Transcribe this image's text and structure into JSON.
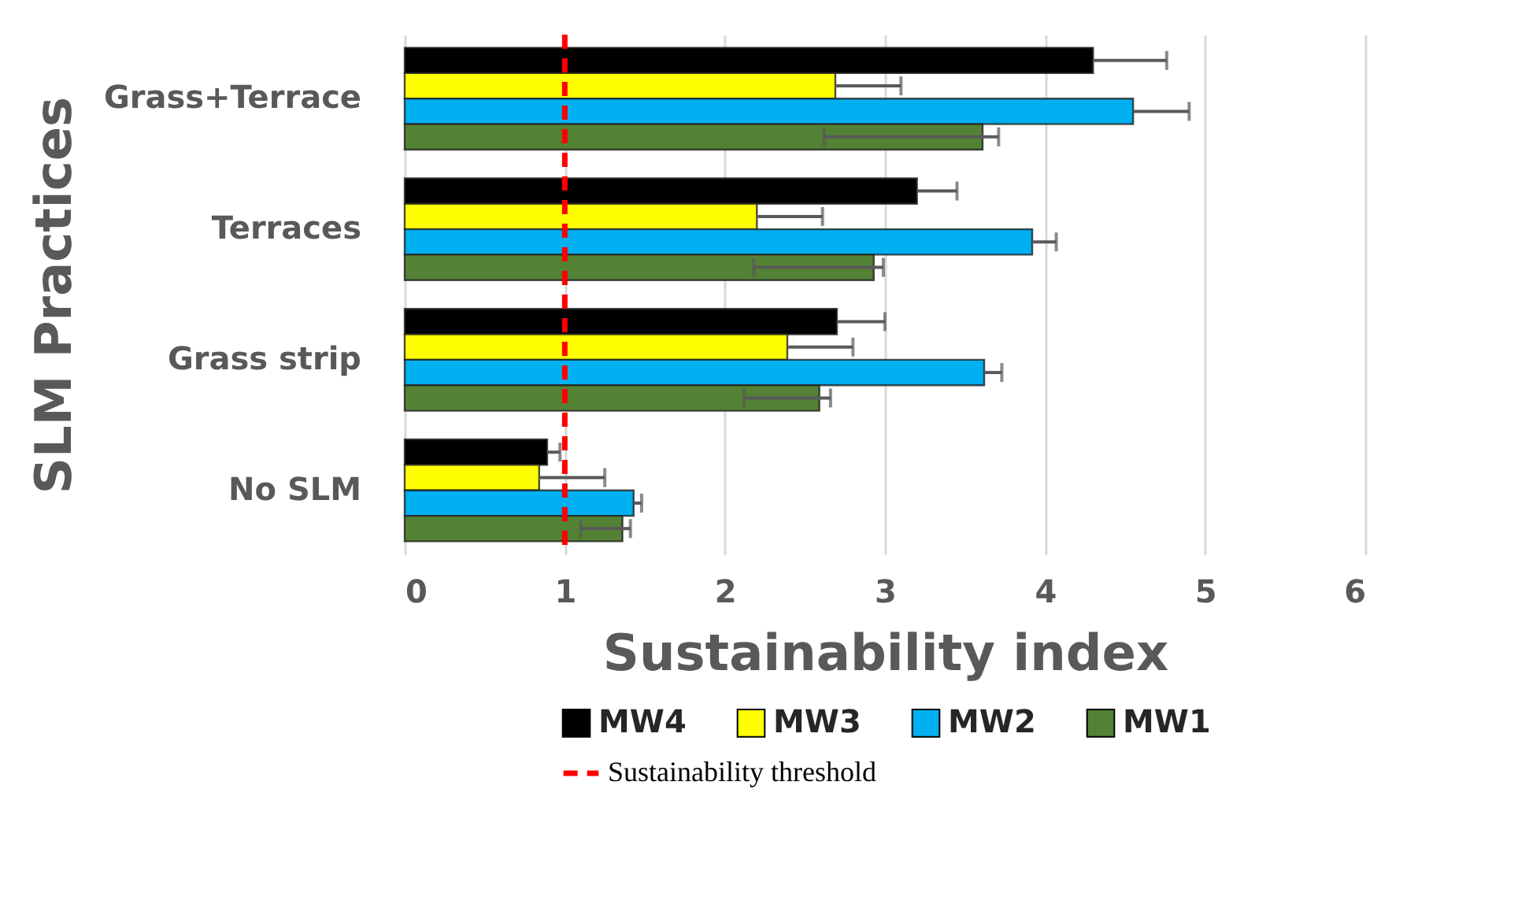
{
  "chart_data": {
    "type": "bar",
    "orientation": "horizontal",
    "xlabel": "Sustainability index",
    "ylabel": "SLM Practices",
    "categories": [
      "Grass+Terrace",
      "Terraces",
      "Grass strip",
      "No SLM"
    ],
    "series": [
      {
        "name": "MW4",
        "color": "#000000",
        "values": [
          4.3,
          3.2,
          2.7,
          0.89
        ],
        "errors": [
          [
            4.3,
            4.76
          ],
          [
            3.2,
            3.45
          ],
          [
            2.7,
            3.0
          ],
          [
            0.89,
            0.97
          ]
        ]
      },
      {
        "name": "MW3",
        "color": "#ffff00",
        "values": [
          2.69,
          2.2,
          2.39,
          0.84
        ],
        "errors": [
          [
            2.69,
            3.1
          ],
          [
            2.2,
            2.61
          ],
          [
            2.39,
            2.8
          ],
          [
            0.84,
            1.25
          ]
        ]
      },
      {
        "name": "MW2",
        "color": "#00b0f0",
        "values": [
          4.55,
          3.92,
          3.62,
          1.43
        ],
        "errors": [
          [
            4.55,
            4.9
          ],
          [
            3.92,
            4.07
          ],
          [
            3.62,
            3.73
          ],
          [
            1.43,
            1.48
          ]
        ]
      },
      {
        "name": "MW1",
        "color": "#548235",
        "values": [
          3.61,
          2.93,
          2.59,
          1.36
        ],
        "errors": [
          [
            2.62,
            3.71
          ],
          [
            2.18,
            2.99
          ],
          [
            2.12,
            2.66
          ],
          [
            1.1,
            1.41
          ]
        ]
      }
    ],
    "xlim": [
      0,
      6
    ],
    "xticks": [
      0,
      1,
      2,
      3,
      4,
      5,
      6
    ],
    "grid": "x",
    "legend": "bottom",
    "ref_lines": [
      {
        "axis": "x",
        "value": 1,
        "label": "Sustainability threshold",
        "color": "#ff0000",
        "line_style": "dashed"
      }
    ]
  }
}
